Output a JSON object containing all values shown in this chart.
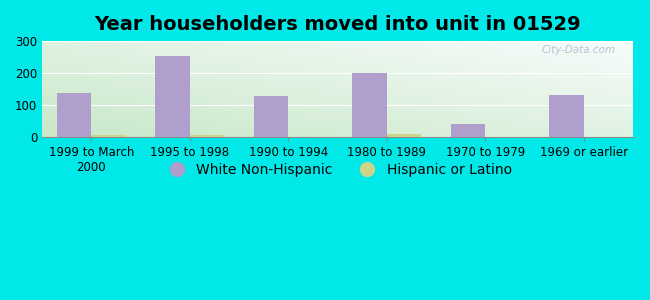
{
  "title": "Year householders moved into unit in 01529",
  "categories": [
    "1999 to March\n2000",
    "1995 to 1998",
    "1990 to 1994",
    "1980 to 1989",
    "1970 to 1979",
    "1969 or earlier"
  ],
  "white_values": [
    138,
    253,
    128,
    199,
    42,
    133
  ],
  "hispanic_values": [
    7,
    8,
    0,
    9,
    0,
    0
  ],
  "white_color": "#b09fcc",
  "hispanic_color": "#ccd48a",
  "bg_outer": "#00e8e8",
  "bg_plot_top_right": "#f0f8f8",
  "bg_plot_bottom_left": "#c8e8c8",
  "ylim": [
    0,
    300
  ],
  "yticks": [
    0,
    100,
    200,
    300
  ],
  "bar_width": 0.35,
  "title_fontsize": 14,
  "tick_fontsize": 8.5,
  "legend_fontsize": 10,
  "watermark_text": "City-Data.com"
}
